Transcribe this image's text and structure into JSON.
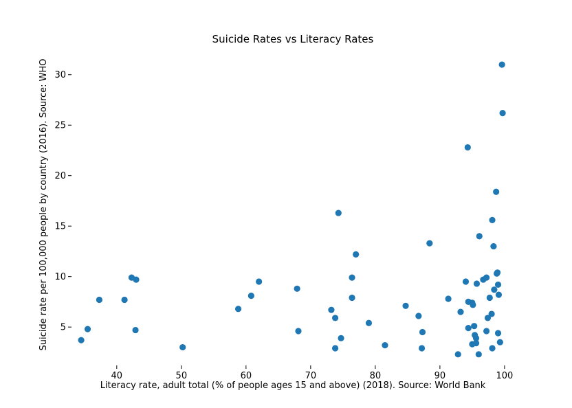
{
  "chart_data": {
    "type": "scatter",
    "title": "Suicide Rates vs Literacy Rates",
    "xlabel": "Literacy rate, adult total (% of people ages 15 and above) (2018). Source: World Bank",
    "ylabel": "Suicide rate per 100,000 people by country (2016). Source: WHO",
    "xlim": [
      33,
      101.5
    ],
    "ylim": [
      1.2,
      32.5
    ],
    "xticks": [
      40,
      50,
      60,
      70,
      80,
      90,
      100
    ],
    "yticks": [
      5,
      10,
      15,
      20,
      25,
      30
    ],
    "grid": false,
    "marker_color": "#1f77b4",
    "points": [
      [
        34.5,
        3.7
      ],
      [
        35.5,
        4.8
      ],
      [
        37.3,
        7.7
      ],
      [
        41.2,
        7.7
      ],
      [
        42.3,
        9.9
      ],
      [
        43.0,
        9.7
      ],
      [
        42.9,
        4.7
      ],
      [
        50.2,
        3.0
      ],
      [
        58.8,
        6.8
      ],
      [
        60.8,
        8.1
      ],
      [
        62.0,
        9.5
      ],
      [
        67.9,
        8.8
      ],
      [
        68.1,
        4.6
      ],
      [
        73.2,
        6.7
      ],
      [
        73.8,
        5.9
      ],
      [
        73.8,
        2.9
      ],
      [
        74.3,
        16.3
      ],
      [
        74.7,
        3.9
      ],
      [
        76.4,
        9.9
      ],
      [
        76.4,
        7.9
      ],
      [
        77.0,
        12.2
      ],
      [
        79.0,
        5.4
      ],
      [
        81.5,
        3.2
      ],
      [
        84.7,
        7.1
      ],
      [
        86.7,
        6.1
      ],
      [
        87.3,
        4.5
      ],
      [
        87.2,
        2.9
      ],
      [
        88.4,
        13.3
      ],
      [
        91.3,
        7.8
      ],
      [
        92.8,
        2.3
      ],
      [
        93.2,
        6.5
      ],
      [
        94.0,
        9.5
      ],
      [
        94.3,
        22.8
      ],
      [
        94.4,
        7.5
      ],
      [
        94.4,
        4.9
      ],
      [
        95.0,
        7.4
      ],
      [
        95.1,
        7.2
      ],
      [
        95.0,
        3.3
      ],
      [
        95.3,
        5.1
      ],
      [
        95.4,
        4.2
      ],
      [
        95.6,
        3.9
      ],
      [
        95.6,
        3.4
      ],
      [
        95.7,
        9.3
      ],
      [
        96.0,
        2.3
      ],
      [
        96.1,
        14.0
      ],
      [
        96.7,
        9.7
      ],
      [
        97.2,
        9.9
      ],
      [
        97.2,
        4.6
      ],
      [
        97.4,
        5.9
      ],
      [
        97.7,
        7.9
      ],
      [
        98.0,
        6.3
      ],
      [
        98.1,
        2.9
      ],
      [
        98.1,
        15.6
      ],
      [
        98.3,
        13.0
      ],
      [
        98.4,
        8.7
      ],
      [
        98.7,
        18.4
      ],
      [
        98.8,
        10.3
      ],
      [
        98.9,
        10.4
      ],
      [
        99.0,
        9.2
      ],
      [
        99.1,
        8.2
      ],
      [
        99.0,
        4.4
      ],
      [
        99.3,
        3.5
      ],
      [
        99.6,
        31.0
      ],
      [
        99.7,
        26.2
      ]
    ]
  }
}
